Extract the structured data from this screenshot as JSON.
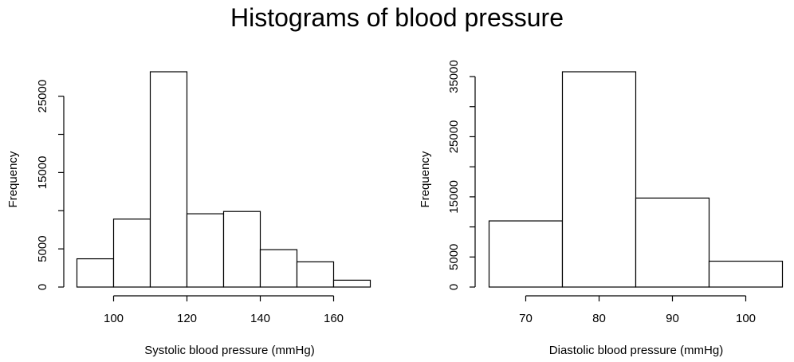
{
  "title": "Histograms of blood pressure",
  "chart_data": [
    {
      "type": "bar",
      "subtype": "histogram",
      "title": "",
      "xlabel": "Systolic blood pressure (mmHg)",
      "ylabel": "Frequency",
      "bin_edges": [
        90,
        100,
        110,
        120,
        130,
        140,
        150,
        160,
        170
      ],
      "values": [
        3700,
        8900,
        28200,
        9600,
        9900,
        4900,
        3300,
        900
      ],
      "xticks": [
        100,
        120,
        140,
        160
      ],
      "yticks": [
        0,
        5000,
        10000,
        15000,
        20000,
        25000
      ],
      "ytick_labels": [
        "0",
        "5000",
        "",
        "15000",
        "",
        "25000"
      ],
      "xlim": [
        90,
        170
      ],
      "ylim": [
        0,
        28200
      ],
      "grid": false,
      "legend": "none"
    },
    {
      "type": "bar",
      "subtype": "histogram",
      "title": "",
      "xlabel": "Diastolic blood pressure (mmHg)",
      "ylabel": "Frequency",
      "bin_edges": [
        65,
        75,
        85,
        95,
        105
      ],
      "values": [
        11000,
        35800,
        14800,
        4300
      ],
      "xticks": [
        70,
        80,
        90,
        100
      ],
      "yticks": [
        0,
        5000,
        10000,
        15000,
        20000,
        25000,
        30000,
        35000
      ],
      "ytick_labels": [
        "0",
        "5000",
        "",
        "15000",
        "",
        "25000",
        "",
        "35000"
      ],
      "xlim": [
        65,
        105
      ],
      "ylim": [
        0,
        35800
      ],
      "grid": false,
      "legend": "none"
    }
  ]
}
